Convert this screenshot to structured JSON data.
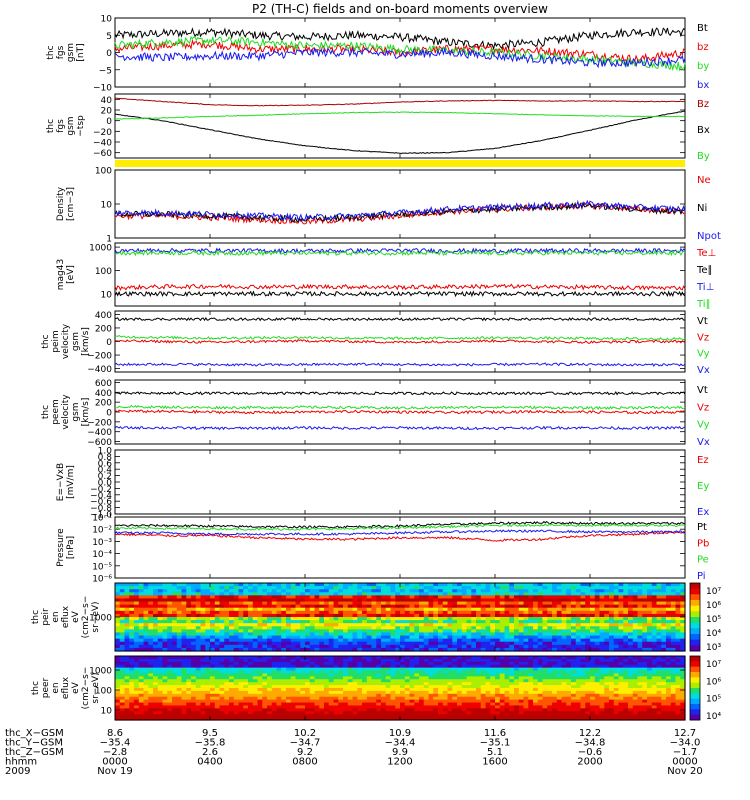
{
  "title": "P2 (TH-C) fields and on-board moments overview",
  "colors": {
    "black": "#000000",
    "red": "#ee0000",
    "green": "#22dd22",
    "blue": "#1a1aee",
    "darkred": "#aa0000",
    "yellow": "#ffee00"
  },
  "chart_data": [
    {
      "type": "line",
      "ylabel": [
        "thc",
        "fgs",
        "gsm",
        "[nT]"
      ],
      "ylim": [
        -10,
        10
      ],
      "yticks": [
        "10",
        "5",
        "0",
        "−5",
        "−10"
      ],
      "series": [
        {
          "name": "Bt",
          "color": "#000000",
          "profile": [
            5,
            5.5,
            6,
            5,
            4.5,
            5,
            4.5,
            3,
            2,
            3,
            5,
            6,
            6
          ]
        },
        {
          "name": "bz",
          "color": "#ee0000",
          "profile": [
            1,
            2,
            2.5,
            1,
            1,
            1,
            0,
            1,
            1,
            0.5,
            -0.5,
            -2,
            0
          ]
        },
        {
          "name": "by",
          "color": "#22dd22",
          "profile": [
            2,
            3,
            3.5,
            3,
            2,
            2,
            1,
            0.5,
            0,
            -1,
            -2,
            -3,
            -4
          ]
        },
        {
          "name": "bx",
          "color": "#1a1aee",
          "profile": [
            -1,
            -1.5,
            -1,
            -1,
            0,
            0,
            -0.5,
            0,
            -1,
            -2,
            -3,
            -3,
            -2
          ]
        }
      ]
    },
    {
      "type": "line",
      "ylabel": [
        "thc",
        "fgs",
        "gsm",
        "−tsp"
      ],
      "ylim": [
        -70,
        50
      ],
      "yticks": [
        "40",
        "20",
        "0",
        "−20",
        "−40",
        "−60"
      ],
      "series": [
        {
          "name": "Bz",
          "color": "#aa0000",
          "profile": [
            42,
            36,
            30,
            28,
            29,
            31,
            35,
            37,
            38,
            37,
            37,
            36,
            36
          ]
        },
        {
          "name": "Bx",
          "color": "#000000",
          "profile": [
            12,
            0,
            -17,
            -34,
            -47,
            -56,
            -61,
            -60,
            -52,
            -37,
            -18,
            2,
            18
          ]
        },
        {
          "name": "By",
          "color": "#22dd22",
          "profile": [
            3,
            5,
            8,
            10,
            13,
            15,
            16,
            15,
            13,
            11,
            9,
            8,
            8
          ]
        }
      ]
    },
    {
      "type": "line",
      "ylabel": [
        "Density",
        "[cm−3]"
      ],
      "ylim": [
        1,
        100
      ],
      "log": true,
      "yticks": [
        "100",
        "10",
        "1"
      ],
      "series": [
        {
          "name": "Ne",
          "color": "#ee0000",
          "profile": [
            4.5,
            4.5,
            4,
            3.5,
            3,
            3.5,
            4.5,
            6,
            7,
            8,
            9,
            7,
            6
          ]
        },
        {
          "name": "Ni",
          "color": "#000000",
          "profile": [
            5,
            5,
            4.5,
            4,
            3.5,
            4,
            5,
            6,
            7,
            8,
            9,
            7,
            6
          ]
        },
        {
          "name": "Npot",
          "color": "#1a1aee",
          "profile": [
            5.5,
            5.5,
            5,
            4.5,
            4,
            4.5,
            5.5,
            7,
            8,
            9,
            10,
            8,
            7
          ]
        }
      ]
    },
    {
      "type": "line",
      "ylabel": [
        "mag43",
        "[eV]"
      ],
      "ylim": [
        3,
        1500
      ],
      "log": true,
      "yticks": [
        "1000",
        "100",
        "10"
      ],
      "series": [
        {
          "name": "Te⊥",
          "color": "#ee0000",
          "profile": [
            18,
            20,
            21,
            20,
            20,
            20,
            19,
            20,
            21,
            20,
            19,
            18,
            18
          ]
        },
        {
          "name": "Te∥",
          "color": "#000000",
          "profile": [
            10,
            10,
            10,
            10,
            10,
            10,
            10,
            10,
            10,
            10,
            10,
            10,
            10
          ]
        },
        {
          "name": "Ti⊥",
          "color": "#1a1aee",
          "profile": [
            700,
            720,
            710,
            700,
            690,
            700,
            710,
            700,
            690,
            700,
            700,
            700,
            700
          ]
        },
        {
          "name": "Ti∥",
          "color": "#22dd22",
          "profile": [
            560,
            570,
            560,
            550,
            550,
            560,
            560,
            550,
            550,
            560,
            560,
            560,
            560
          ]
        }
      ]
    },
    {
      "type": "line",
      "ylabel": [
        "thc",
        "peim",
        "velocity",
        "gsm",
        "[km/s]"
      ],
      "ylim": [
        -450,
        450
      ],
      "yticks": [
        "400",
        "200",
        "0",
        "−200",
        "−400"
      ],
      "series": [
        {
          "name": "Vt",
          "color": "#000000",
          "profile": [
            330,
            330,
            330,
            330,
            330,
            330,
            330,
            330,
            330,
            330,
            330,
            330,
            330
          ]
        },
        {
          "name": "Vz",
          "color": "#ee0000",
          "profile": [
            10,
            0,
            -10,
            0,
            10,
            0,
            -10,
            0,
            10,
            0,
            -10,
            0,
            0
          ]
        },
        {
          "name": "Vy",
          "color": "#22dd22",
          "profile": [
            70,
            60,
            50,
            55,
            60,
            50,
            45,
            50,
            55,
            50,
            45,
            40,
            40
          ]
        },
        {
          "name": "Vx",
          "color": "#1a1aee",
          "profile": [
            -340,
            -335,
            -340,
            -345,
            -340,
            -335,
            -340,
            -345,
            -340,
            -335,
            -340,
            -345,
            -340
          ]
        }
      ]
    },
    {
      "type": "line",
      "ylabel": [
        "thc",
        "peem",
        "velocity",
        "gsm",
        "[km/s]"
      ],
      "ylim": [
        -650,
        650
      ],
      "yticks": [
        "600",
        "400",
        "200",
        "0",
        "−200",
        "−400",
        "−600"
      ],
      "series": [
        {
          "name": "Vt",
          "color": "#000000",
          "profile": [
            380,
            380,
            380,
            380,
            380,
            380,
            380,
            380,
            380,
            380,
            380,
            380,
            380
          ]
        },
        {
          "name": "Vz",
          "color": "#ee0000",
          "profile": [
            20,
            10,
            0,
            -10,
            0,
            10,
            0,
            -10,
            0,
            10,
            0,
            -10,
            0
          ]
        },
        {
          "name": "Vy",
          "color": "#22dd22",
          "profile": [
            110,
            100,
            90,
            90,
            100,
            90,
            80,
            90,
            100,
            90,
            80,
            90,
            90
          ]
        },
        {
          "name": "Vx",
          "color": "#1a1aee",
          "profile": [
            -320,
            -320,
            -330,
            -330,
            -320,
            -330,
            -320,
            -330,
            -330,
            -320,
            -320,
            -330,
            -320
          ]
        }
      ]
    },
    {
      "type": "line",
      "ylabel": [
        "E=−VxB",
        "[mV/m]"
      ],
      "ylim": [
        -1,
        1
      ],
      "yticks": [
        "1.0",
        "0.8",
        "0.6",
        "0.4",
        "0.2",
        "0.0",
        "−0.2",
        "−0.4",
        "−0.6",
        "−0.8",
        "−1.0"
      ],
      "series": [
        {
          "name": "Ez",
          "color": "#ee0000",
          "profile": []
        },
        {
          "name": "Ey",
          "color": "#22dd22",
          "profile": []
        },
        {
          "name": "Ex",
          "color": "#1a1aee",
          "profile": []
        }
      ]
    },
    {
      "type": "line",
      "ylabel": [
        "Pressure",
        "[nPa]"
      ],
      "ylim": [
        1e-06,
        0.1
      ],
      "log": true,
      "yticks": [
        "10⁻¹",
        "10⁻²",
        "10⁻³",
        "10⁻⁴",
        "10⁻⁵",
        "10⁻⁶"
      ],
      "series": [
        {
          "name": "Pt",
          "color": "#000000",
          "profile": [
            0.02,
            0.02,
            0.018,
            0.016,
            0.015,
            0.016,
            0.018,
            0.025,
            0.03,
            0.035,
            0.03,
            0.03,
            0.03
          ]
        },
        {
          "name": "Pb",
          "color": "#ee0000",
          "profile": [
            0.004,
            0.003,
            0.003,
            0.002,
            0.0015,
            0.0015,
            0.002,
            0.002,
            0.0012,
            0.0015,
            0.003,
            0.004,
            0.006
          ]
        },
        {
          "name": "Pe",
          "color": "#22dd22",
          "profile": [
            0.012,
            0.012,
            0.011,
            0.01,
            0.01,
            0.011,
            0.013,
            0.016,
            0.02,
            0.022,
            0.02,
            0.02,
            0.02
          ]
        },
        {
          "name": "Pi",
          "color": "#1a1aee",
          "profile": [
            0.005,
            0.005,
            0.004,
            0.004,
            0.004,
            0.004,
            0.005,
            0.006,
            0.007,
            0.007,
            0.006,
            0.006,
            0.006
          ]
        }
      ]
    },
    {
      "type": "heatmap",
      "ylabel": [
        "thc",
        "peir",
        "en",
        "eflux",
        "eV",
        "(cm2−s−",
        "sr−eV)"
      ],
      "yticks": [
        "1000"
      ],
      "colorbar_ticks": [
        "10⁷",
        "10⁶",
        "10⁵",
        "10⁴",
        "10³"
      ]
    },
    {
      "type": "heatmap",
      "ylabel": [
        "thc",
        "peer",
        "en",
        "eflux",
        "eV",
        "(cm2−s−",
        "sr−eV)"
      ],
      "yticks": [
        "1000",
        "100",
        "10"
      ],
      "colorbar_ticks": [
        "10⁷",
        "10⁶",
        "10⁵",
        "10⁴"
      ]
    }
  ],
  "xaxis": {
    "rows": [
      {
        "label": "thc_X−GSM",
        "values": [
          "8.6",
          "9.5",
          "10.2",
          "10.9",
          "11.6",
          "12.2",
          "12.7"
        ]
      },
      {
        "label": "thc_Y−GSM",
        "values": [
          "−35.4",
          "−35.8",
          "−34.7",
          "−34.4",
          "−35.1",
          "−34.8",
          "−34.0"
        ]
      },
      {
        "label": "thc_Z−GSM",
        "values": [
          "−2.8",
          "2.6",
          "9.2",
          "9.9",
          "5.1",
          "−0.6",
          "−1.7"
        ]
      },
      {
        "label": "hhmm",
        "values": [
          "0000",
          "0400",
          "0800",
          "1200",
          "1600",
          "2000",
          "0000"
        ]
      }
    ],
    "year": "2009",
    "date_start": "Nov 19",
    "date_end": "Nov 20"
  }
}
